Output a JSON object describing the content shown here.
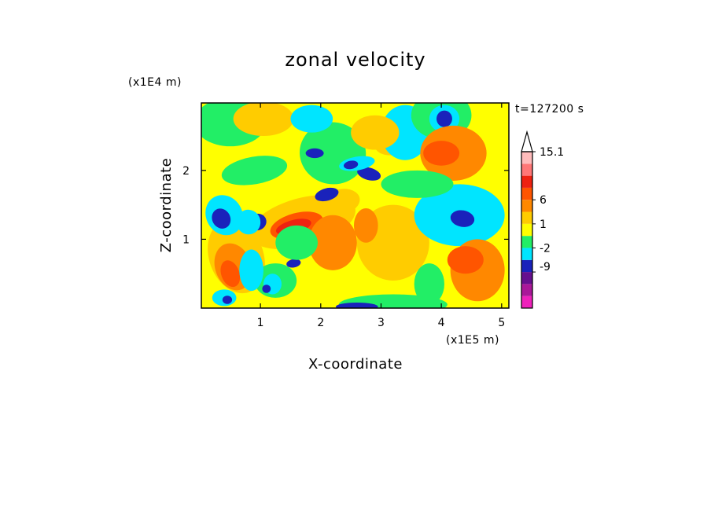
{
  "chart_data": {
    "type": "heatmap",
    "title": "zonal velocity",
    "xlabel": "X-coordinate",
    "ylabel": "Z-coordinate",
    "x_scale_label": "(x1E5 m)",
    "y_scale_label": "(x1E4 m)",
    "time_label": "t=127200 s",
    "xlim": [
      0.02,
      5.12
    ],
    "ylim": [
      0.0,
      2.98
    ],
    "x_ticks": [
      "1",
      "2",
      "3",
      "4",
      "5"
    ],
    "x_tick_values": [
      1,
      2,
      3,
      4,
      5
    ],
    "y_ticks": [
      "1",
      "2"
    ],
    "y_tick_values": [
      1,
      2
    ],
    "colorbar": {
      "levels": [
        {
          "color": "#ee22bb"
        },
        {
          "color": "#aa1899"
        },
        {
          "color": "#66108f"
        },
        {
          "color": "#1a22bb"
        },
        {
          "color": "#00e5ff"
        },
        {
          "color": "#22ee66"
        },
        {
          "color": "#ffff00"
        },
        {
          "color": "#ffcc00"
        },
        {
          "color": "#ff8800"
        },
        {
          "color": "#ff5500"
        },
        {
          "color": "#ee2211"
        },
        {
          "color": "#ff7777"
        },
        {
          "color": "#ffbbbb"
        }
      ],
      "labels": [
        "-9",
        "-2",
        "1",
        "6",
        "15.1"
      ]
    },
    "grid": false
  }
}
